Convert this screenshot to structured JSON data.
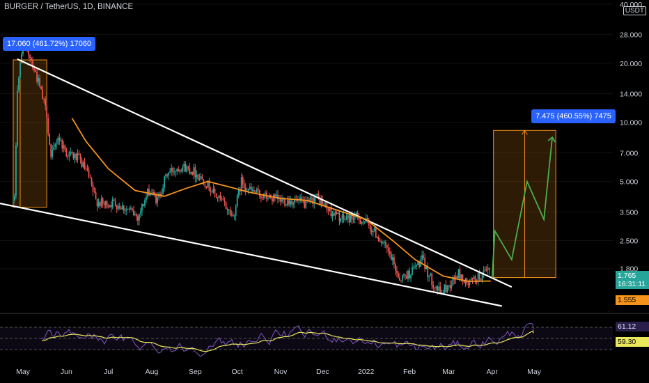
{
  "header": {
    "title": "BURGER / TetherUS, 1D, BINANCE",
    "currency": "USDT"
  },
  "colors": {
    "up": "#26a69a",
    "down": "#ef5350",
    "ma": "#f7931a",
    "trend": "#ffffff",
    "projection": "#4caf50",
    "rsi": "#7e57c2",
    "rsi_ma": "#e8e85a",
    "measure": "#2962ff",
    "target_box": "#f7931a"
  },
  "measurements": [
    {
      "label": "17.060 (461.72%) 17060"
    },
    {
      "label": "7.475 (460.55%) 7475"
    }
  ],
  "price_axis": {
    "ticks": [
      "40.000",
      "28.000",
      "20.000",
      "14.000",
      "10.000",
      "7.000",
      "5.000",
      "3.500",
      "2.500",
      "1.800"
    ],
    "tick_values": [
      40,
      28,
      20,
      14,
      10,
      7,
      5,
      3.5,
      2.5,
      1.8
    ]
  },
  "price_tags": {
    "last": {
      "value": "1.765",
      "countdown": "16:31:11"
    },
    "ma": {
      "value": "1.555"
    }
  },
  "rsi_axis": {
    "rsi": "61.12",
    "rsi_ma": "59.30"
  },
  "time_axis": {
    "labels": [
      "May",
      "Jun",
      "Jul",
      "Aug",
      "Sep",
      "Oct",
      "Nov",
      "Dec",
      "2022",
      "Feb",
      "Mar",
      "Apr",
      "May"
    ]
  },
  "chart_data": {
    "type": "candlestick",
    "symbol": "BURGER / TetherUS",
    "interval": "1D",
    "exchange": "BINANCE",
    "y_scale": "log",
    "ylim": [
      1.1,
      42
    ],
    "price_path": [
      [
        "2021-04-25",
        4.0
      ],
      [
        "2021-04-27",
        15.0
      ],
      [
        "2021-05-01",
        25.0
      ],
      [
        "2021-05-06",
        22.0
      ],
      [
        "2021-05-12",
        16.0
      ],
      [
        "2021-05-18",
        11.0
      ],
      [
        "2021-05-21",
        6.5
      ],
      [
        "2021-05-26",
        8.5
      ],
      [
        "2021-06-01",
        7.0
      ],
      [
        "2021-06-10",
        6.5
      ],
      [
        "2021-06-16",
        5.5
      ],
      [
        "2021-06-22",
        4.0
      ],
      [
        "2021-06-28",
        3.8
      ],
      [
        "2021-07-05",
        3.9
      ],
      [
        "2021-07-15",
        3.6
      ],
      [
        "2021-07-22",
        3.3
      ],
      [
        "2021-07-30",
        4.5
      ],
      [
        "2021-08-05",
        4.0
      ],
      [
        "2021-08-12",
        5.5
      ],
      [
        "2021-08-22",
        6.0
      ],
      [
        "2021-08-30",
        5.7
      ],
      [
        "2021-09-08",
        5.0
      ],
      [
        "2021-09-15",
        4.3
      ],
      [
        "2021-09-22",
        3.8
      ],
      [
        "2021-09-28",
        3.3
      ],
      [
        "2021-10-04",
        5.0
      ],
      [
        "2021-10-10",
        4.5
      ],
      [
        "2021-10-20",
        4.2
      ],
      [
        "2021-11-01",
        4.0
      ],
      [
        "2021-11-10",
        4.0
      ],
      [
        "2021-11-20",
        3.8
      ],
      [
        "2021-11-26",
        4.2
      ],
      [
        "2021-12-05",
        3.6
      ],
      [
        "2021-12-15",
        3.2
      ],
      [
        "2021-12-24",
        3.3
      ],
      [
        "2022-01-01",
        3.1
      ],
      [
        "2022-01-10",
        2.6
      ],
      [
        "2022-01-18",
        2.1
      ],
      [
        "2022-01-25",
        1.6
      ],
      [
        "2022-02-01",
        1.7
      ],
      [
        "2022-02-10",
        2.0
      ],
      [
        "2022-02-16",
        1.6
      ],
      [
        "2022-02-23",
        1.35
      ],
      [
        "2022-03-02",
        1.5
      ],
      [
        "2022-03-08",
        1.7
      ],
      [
        "2022-03-14",
        1.5
      ],
      [
        "2022-03-24",
        1.65
      ],
      [
        "2022-03-31",
        1.765
      ]
    ],
    "moving_average": [
      [
        "2021-06-05",
        10.5
      ],
      [
        "2021-06-15",
        8.0
      ],
      [
        "2021-07-01",
        5.8
      ],
      [
        "2021-07-20",
        4.5
      ],
      [
        "2021-08-10",
        4.2
      ],
      [
        "2021-08-25",
        4.6
      ],
      [
        "2021-09-10",
        5.0
      ],
      [
        "2021-09-25",
        4.7
      ],
      [
        "2021-10-10",
        4.4
      ],
      [
        "2021-11-01",
        4.1
      ],
      [
        "2021-11-20",
        4.0
      ],
      [
        "2021-12-10",
        3.6
      ],
      [
        "2022-01-01",
        3.2
      ],
      [
        "2022-01-20",
        2.5
      ],
      [
        "2022-02-05",
        2.0
      ],
      [
        "2022-02-25",
        1.65
      ],
      [
        "2022-03-15",
        1.55
      ],
      [
        "2022-03-31",
        1.555
      ]
    ],
    "trendlines": [
      {
        "name": "upper",
        "from": [
          "2021-04-27",
          21.0
        ],
        "to": [
          "2022-04-15",
          1.45
        ]
      },
      {
        "name": "lower",
        "from": [
          "2021-04-12",
          3.9
        ],
        "to": [
          "2022-04-08",
          1.16
        ]
      }
    ],
    "first_move": {
      "from": [
        "2021-04-27",
        3.7
      ],
      "to": [
        "2021-05-15",
        20.8
      ],
      "change": 17.06,
      "percent": 461.72,
      "ticks": 17060
    },
    "target_move": {
      "from": [
        "2022-04-01",
        1.62
      ],
      "to": [
        "2022-05-15",
        9.1
      ],
      "change": 7.475,
      "percent": 460.55,
      "ticks": 7475
    },
    "projection_path": [
      [
        "2022-04-01",
        1.62
      ],
      [
        "2022-04-03",
        2.8
      ],
      [
        "2022-04-15",
        2.0
      ],
      [
        "2022-04-26",
        5.0
      ],
      [
        "2022-05-08",
        3.2
      ],
      [
        "2022-05-14",
        8.4
      ]
    ],
    "rsi": {
      "value": 61.12,
      "ma": 59.3,
      "upper_band": 70,
      "lower_band": 30,
      "ylim": [
        15,
        85
      ]
    }
  }
}
